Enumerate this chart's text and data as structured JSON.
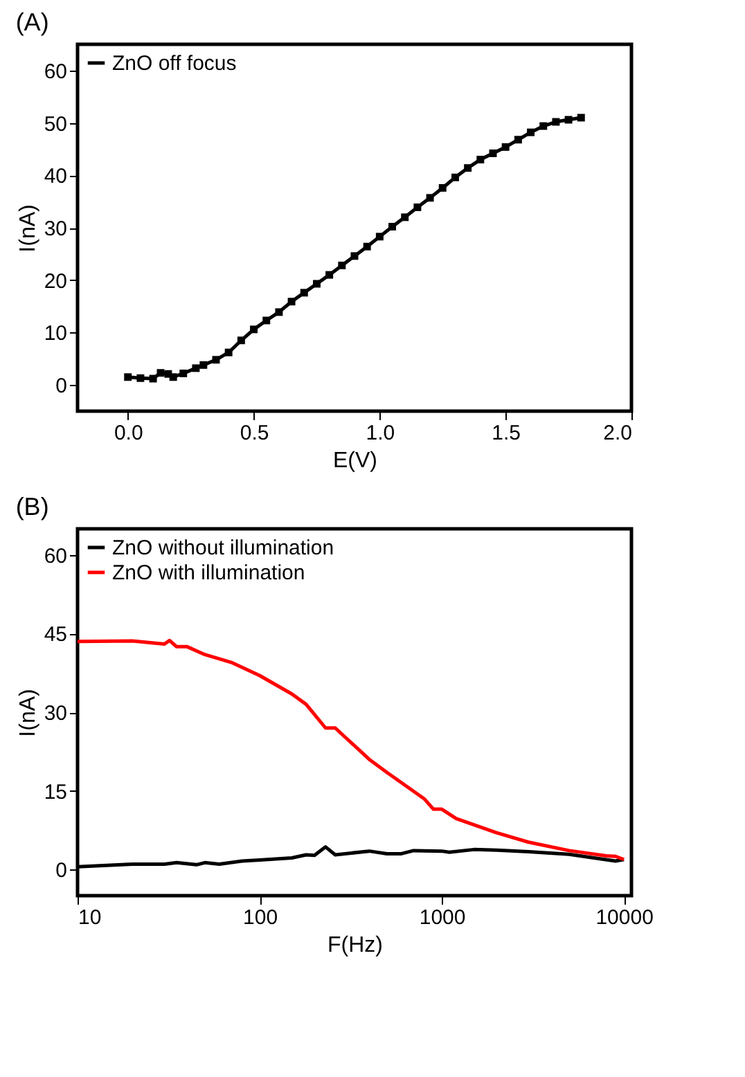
{
  "chart_data": [
    {
      "type": "line",
      "title": "(A)",
      "xlabel": "E(V)",
      "ylabel": "I(nA)",
      "xlim": [
        -0.2,
        2.0
      ],
      "ylim": [
        -5,
        65
      ],
      "xticks": [
        {
          "value": 0,
          "label": "0.0"
        },
        0.5,
        {
          "value": 1,
          "label": "1.0"
        },
        1.5,
        {
          "value": 2,
          "label": "2.0"
        }
      ],
      "yticks": [
        0,
        10,
        20,
        30,
        40,
        50,
        60
      ],
      "marker": "square",
      "line_style": "solid",
      "legend": "top left",
      "series": [
        {
          "name": "ZnO off focus",
          "color": "#000000",
          "x": [
            0.0,
            0.05,
            0.1,
            0.13,
            0.16,
            0.18,
            0.22,
            0.27,
            0.3,
            0.35,
            0.4,
            0.45,
            0.5,
            0.55,
            0.6,
            0.65,
            0.7,
            0.75,
            0.8,
            0.85,
            0.9,
            0.95,
            1.0,
            1.05,
            1.1,
            1.15,
            1.2,
            1.25,
            1.3,
            1.35,
            1.4,
            1.45,
            1.5,
            1.55,
            1.6,
            1.65,
            1.7,
            1.75,
            1.8
          ],
          "values": [
            1.5,
            1.3,
            1.2,
            2.3,
            2.1,
            1.5,
            2.2,
            3.2,
            3.8,
            4.8,
            6.2,
            8.5,
            10.6,
            12.3,
            13.9,
            15.9,
            17.6,
            19.3,
            21.0,
            22.8,
            24.6,
            26.4,
            28.3,
            30.2,
            32.0,
            33.9,
            35.7,
            37.6,
            39.6,
            41.4,
            43.0,
            44.2,
            45.4,
            46.8,
            48.2,
            49.4,
            50.2,
            50.6,
            51.0
          ]
        }
      ]
    },
    {
      "type": "line",
      "title": "(B)",
      "xlabel": "F(Hz)",
      "ylabel": "I(nA)",
      "log": "x",
      "xlim": [
        10,
        11000
      ],
      "ylim": [
        -5,
        65
      ],
      "xticks": [
        10,
        100,
        1000,
        10000
      ],
      "yticks": [
        0,
        15,
        30,
        45,
        60
      ],
      "marker": "none",
      "line_style": "solid",
      "legend": "top left",
      "series": [
        {
          "name": "ZnO without illumination",
          "color": "#000000",
          "x": [
            10,
            20,
            30,
            35,
            45,
            50,
            60,
            80,
            100,
            150,
            180,
            200,
            230,
            260,
            400,
            500,
            600,
            700,
            1000,
            1100,
            1500,
            2000,
            3000,
            5000,
            9000,
            10000
          ],
          "values": [
            0.5,
            1.0,
            1.0,
            1.3,
            0.9,
            1.3,
            1.0,
            1.6,
            1.8,
            2.2,
            2.8,
            2.7,
            4.3,
            2.8,
            3.5,
            3.0,
            3.0,
            3.6,
            3.5,
            3.3,
            3.8,
            3.7,
            3.4,
            2.9,
            1.6,
            1.9
          ]
        },
        {
          "name": "ZnO with illumination",
          "color": "#ff0000",
          "x": [
            10,
            20,
            30,
            32,
            35,
            40,
            50,
            70,
            100,
            150,
            180,
            230,
            260,
            400,
            500,
            800,
            900,
            1000,
            1200,
            2000,
            3000,
            5000,
            8000,
            9000,
            10000
          ],
          "values": [
            43.5,
            43.6,
            43.0,
            43.7,
            42.5,
            42.5,
            41.0,
            39.5,
            37.0,
            33.5,
            31.5,
            27.0,
            27.0,
            21.0,
            18.5,
            13.5,
            11.5,
            11.5,
            9.7,
            7.0,
            5.2,
            3.6,
            2.6,
            2.5,
            1.9
          ]
        }
      ]
    }
  ]
}
